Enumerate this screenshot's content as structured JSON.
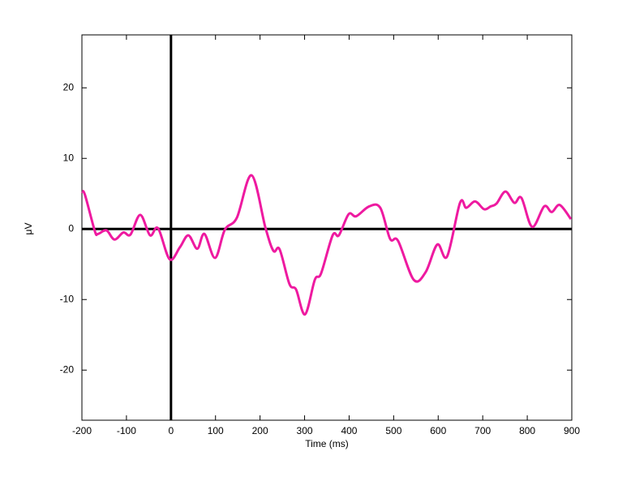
{
  "chart_data": {
    "type": "line",
    "xlabel": "Time (ms)",
    "ylabel": "μV",
    "x": [
      -200,
      -193,
      -171,
      -164,
      -145,
      -127,
      -107,
      -91,
      -69,
      -47,
      -29,
      -3,
      20,
      39,
      59,
      75,
      99,
      121,
      148,
      181,
      212,
      230,
      244,
      266,
      281,
      301,
      323,
      337,
      363,
      377,
      399,
      416,
      445,
      470,
      492,
      510,
      545,
      572,
      598,
      620,
      649,
      663,
      683,
      703,
      718,
      731,
      751,
      771,
      787,
      811,
      838,
      855,
      873,
      898
    ],
    "series": [
      {
        "color": "#ee1aa0",
        "values": [
          5.3,
          4.8,
          -0.3,
          -0.7,
          -0.2,
          -1.5,
          -0.5,
          -0.8,
          2.0,
          -0.9,
          0.1,
          -4.3,
          -2.6,
          -0.9,
          -2.8,
          -0.7,
          -4.1,
          -0.1,
          1.6,
          7.6,
          0.2,
          -3.1,
          -2.9,
          -7.8,
          -8.6,
          -12.1,
          -7.2,
          -6.3,
          -0.9,
          -0.9,
          2.1,
          1.8,
          3.2,
          3.0,
          -1.4,
          -1.7,
          -7.2,
          -6.1,
          -2.2,
          -3.9,
          3.7,
          3.0,
          3.9,
          2.8,
          3.2,
          3.6,
          5.3,
          3.7,
          4.4,
          0.3,
          3.2,
          2.4,
          3.4,
          1.4
        ]
      }
    ],
    "xlim": [
      -200,
      900
    ],
    "xticks": [
      -200,
      -100,
      0,
      100,
      200,
      300,
      400,
      500,
      600,
      700,
      800,
      900
    ],
    "ylim": [
      -27.1,
      27.5
    ],
    "yticks": [
      -20,
      -10,
      0,
      10,
      20
    ],
    "zero_lines": true
  }
}
